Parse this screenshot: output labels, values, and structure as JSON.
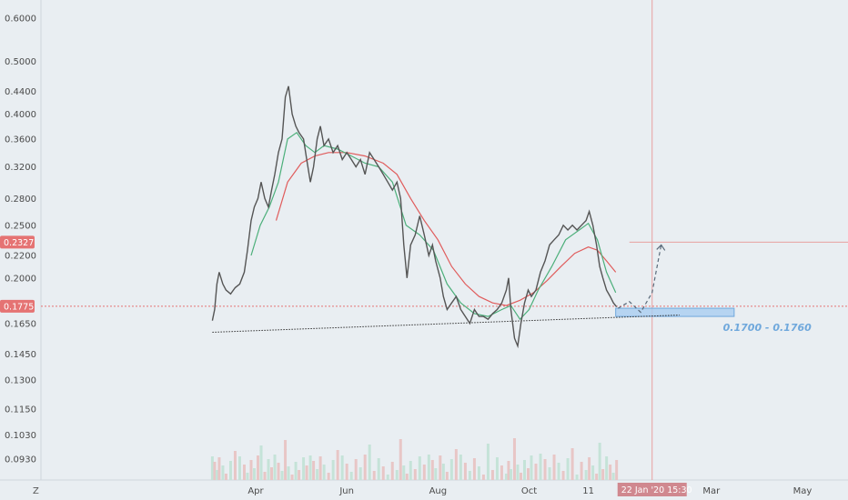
{
  "chart_data": {
    "type": "candlestick",
    "scale": "log",
    "grid": false,
    "y_ticks": [
      "0.6000",
      "0.5000",
      "0.4400",
      "0.4000",
      "0.3600",
      "0.3200",
      "0.2800",
      "0.2500",
      "0.2200",
      "0.2000",
      "0.1650",
      "0.1450",
      "0.1300",
      "0.1150",
      "0.1030",
      "0.0930"
    ],
    "x_ticks": [
      {
        "label": "Apr",
        "t": 2
      },
      {
        "label": "Jun",
        "t": 4
      },
      {
        "label": "Aug",
        "t": 6
      },
      {
        "label": "Oct",
        "t": 8
      },
      {
        "label": "11",
        "t": 9.3
      },
      {
        "label": "Mar",
        "t": 12
      },
      {
        "label": "May",
        "t": 14
      }
    ],
    "current_price": {
      "label": "0.1775",
      "value": 0.1775,
      "color": "#e57373"
    },
    "crosshair_price": {
      "label": "0.2327",
      "value": 0.2327,
      "color": "#e57373"
    },
    "crosshair_time": {
      "label": "22 Jan '20   15:30",
      "t": 10.7
    },
    "axis_corner_label": "Z",
    "series": [
      {
        "name": "price",
        "color": "#555555",
        "points": [
          [
            1.05,
            0.167
          ],
          [
            1.1,
            0.175
          ],
          [
            1.15,
            0.195
          ],
          [
            1.2,
            0.205
          ],
          [
            1.28,
            0.195
          ],
          [
            1.35,
            0.19
          ],
          [
            1.45,
            0.187
          ],
          [
            1.55,
            0.192
          ],
          [
            1.65,
            0.195
          ],
          [
            1.75,
            0.205
          ],
          [
            1.82,
            0.225
          ],
          [
            1.9,
            0.255
          ],
          [
            1.97,
            0.27
          ],
          [
            2.05,
            0.28
          ],
          [
            2.12,
            0.3
          ],
          [
            2.2,
            0.28
          ],
          [
            2.28,
            0.27
          ],
          [
            2.35,
            0.29
          ],
          [
            2.42,
            0.31
          ],
          [
            2.5,
            0.34
          ],
          [
            2.58,
            0.36
          ],
          [
            2.65,
            0.43
          ],
          [
            2.72,
            0.45
          ],
          [
            2.8,
            0.4
          ],
          [
            2.88,
            0.38
          ],
          [
            2.95,
            0.37
          ],
          [
            3.05,
            0.36
          ],
          [
            3.12,
            0.33
          ],
          [
            3.2,
            0.3
          ],
          [
            3.27,
            0.32
          ],
          [
            3.35,
            0.36
          ],
          [
            3.42,
            0.38
          ],
          [
            3.5,
            0.35
          ],
          [
            3.6,
            0.36
          ],
          [
            3.7,
            0.34
          ],
          [
            3.8,
            0.35
          ],
          [
            3.9,
            0.33
          ],
          [
            4.0,
            0.34
          ],
          [
            4.1,
            0.33
          ],
          [
            4.2,
            0.32
          ],
          [
            4.3,
            0.33
          ],
          [
            4.4,
            0.31
          ],
          [
            4.5,
            0.34
          ],
          [
            4.6,
            0.33
          ],
          [
            4.7,
            0.32
          ],
          [
            4.8,
            0.31
          ],
          [
            4.9,
            0.3
          ],
          [
            5.0,
            0.29
          ],
          [
            5.1,
            0.3
          ],
          [
            5.18,
            0.28
          ],
          [
            5.25,
            0.23
          ],
          [
            5.32,
            0.2
          ],
          [
            5.4,
            0.23
          ],
          [
            5.5,
            0.24
          ],
          [
            5.6,
            0.26
          ],
          [
            5.7,
            0.24
          ],
          [
            5.8,
            0.22
          ],
          [
            5.88,
            0.23
          ],
          [
            5.95,
            0.215
          ],
          [
            6.05,
            0.2
          ],
          [
            6.12,
            0.185
          ],
          [
            6.2,
            0.175
          ],
          [
            6.3,
            0.18
          ],
          [
            6.4,
            0.185
          ],
          [
            6.5,
            0.175
          ],
          [
            6.6,
            0.17
          ],
          [
            6.7,
            0.165
          ],
          [
            6.8,
            0.175
          ],
          [
            6.9,
            0.17
          ],
          [
            7.0,
            0.17
          ],
          [
            7.1,
            0.168
          ],
          [
            7.2,
            0.172
          ],
          [
            7.3,
            0.175
          ],
          [
            7.4,
            0.18
          ],
          [
            7.5,
            0.19
          ],
          [
            7.55,
            0.2
          ],
          [
            7.6,
            0.175
          ],
          [
            7.68,
            0.155
          ],
          [
            7.75,
            0.15
          ],
          [
            7.82,
            0.165
          ],
          [
            7.9,
            0.18
          ],
          [
            7.98,
            0.19
          ],
          [
            8.05,
            0.185
          ],
          [
            8.15,
            0.19
          ],
          [
            8.25,
            0.205
          ],
          [
            8.35,
            0.215
          ],
          [
            8.45,
            0.23
          ],
          [
            8.55,
            0.235
          ],
          [
            8.65,
            0.24
          ],
          [
            8.75,
            0.25
          ],
          [
            8.85,
            0.245
          ],
          [
            8.95,
            0.25
          ],
          [
            9.05,
            0.245
          ],
          [
            9.15,
            0.25
          ],
          [
            9.25,
            0.255
          ],
          [
            9.32,
            0.265
          ],
          [
            9.4,
            0.25
          ],
          [
            9.48,
            0.23
          ],
          [
            9.55,
            0.21
          ],
          [
            9.62,
            0.2
          ],
          [
            9.7,
            0.19
          ],
          [
            9.78,
            0.185
          ],
          [
            9.85,
            0.18
          ],
          [
            9.92,
            0.177
          ]
        ]
      },
      {
        "name": "ma_fast",
        "color": "#4caf7a",
        "points": [
          [
            1.9,
            0.22
          ],
          [
            2.1,
            0.25
          ],
          [
            2.3,
            0.27
          ],
          [
            2.5,
            0.3
          ],
          [
            2.7,
            0.36
          ],
          [
            2.9,
            0.37
          ],
          [
            3.1,
            0.35
          ],
          [
            3.3,
            0.34
          ],
          [
            3.5,
            0.35
          ],
          [
            3.8,
            0.345
          ],
          [
            4.1,
            0.335
          ],
          [
            4.4,
            0.325
          ],
          [
            4.7,
            0.32
          ],
          [
            5.0,
            0.3
          ],
          [
            5.3,
            0.25
          ],
          [
            5.6,
            0.24
          ],
          [
            5.9,
            0.225
          ],
          [
            6.2,
            0.195
          ],
          [
            6.5,
            0.18
          ],
          [
            6.8,
            0.172
          ],
          [
            7.1,
            0.17
          ],
          [
            7.4,
            0.175
          ],
          [
            7.6,
            0.178
          ],
          [
            7.8,
            0.168
          ],
          [
            8.0,
            0.175
          ],
          [
            8.2,
            0.19
          ],
          [
            8.5,
            0.21
          ],
          [
            8.8,
            0.235
          ],
          [
            9.1,
            0.245
          ],
          [
            9.3,
            0.252
          ],
          [
            9.5,
            0.235
          ],
          [
            9.7,
            0.205
          ],
          [
            9.9,
            0.188
          ]
        ]
      },
      {
        "name": "ma_slow",
        "color": "#e05c5c",
        "points": [
          [
            2.45,
            0.255
          ],
          [
            2.7,
            0.3
          ],
          [
            3.0,
            0.325
          ],
          [
            3.3,
            0.335
          ],
          [
            3.6,
            0.34
          ],
          [
            4.0,
            0.34
          ],
          [
            4.4,
            0.335
          ],
          [
            4.8,
            0.325
          ],
          [
            5.1,
            0.31
          ],
          [
            5.4,
            0.28
          ],
          [
            5.7,
            0.255
          ],
          [
            6.0,
            0.235
          ],
          [
            6.3,
            0.21
          ],
          [
            6.6,
            0.195
          ],
          [
            6.9,
            0.185
          ],
          [
            7.2,
            0.18
          ],
          [
            7.5,
            0.178
          ],
          [
            7.8,
            0.182
          ],
          [
            8.1,
            0.188
          ],
          [
            8.4,
            0.198
          ],
          [
            8.7,
            0.21
          ],
          [
            9.0,
            0.222
          ],
          [
            9.3,
            0.228
          ],
          [
            9.5,
            0.225
          ],
          [
            9.7,
            0.215
          ],
          [
            9.9,
            0.205
          ]
        ]
      }
    ],
    "support_line": {
      "from": [
        1.05,
        0.159
      ],
      "to": [
        11.3,
        0.171
      ]
    },
    "support_zone": {
      "label": "0.1700 - 0.1760",
      "low": 0.17,
      "high": 0.176,
      "t_start": 9.9,
      "t_end": 12.5
    },
    "projection": {
      "points": [
        [
          9.95,
          0.176
        ],
        [
          10.2,
          0.181
        ],
        [
          10.45,
          0.173
        ],
        [
          10.7,
          0.188
        ],
        [
          10.9,
          0.23
        ]
      ]
    }
  }
}
